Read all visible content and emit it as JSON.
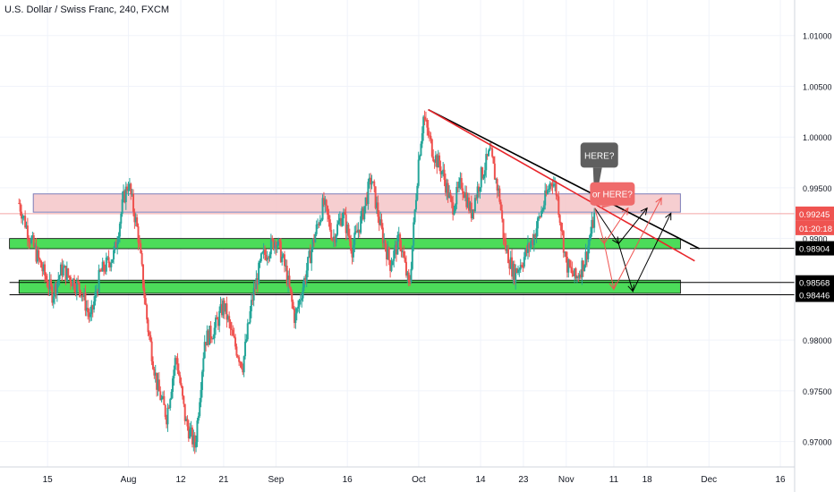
{
  "header": {
    "title": "U.S. Dollar / Swiss Franc, 240, FXCM"
  },
  "colors": {
    "up": "#26a69a",
    "down": "#ef5350",
    "pink_zone": "#f5c6c8",
    "pink_zone_border": "#7d7db8",
    "green_zone": "#4cdc5a",
    "trendline_black": "#000000",
    "trendline_red": "#e8262b",
    "current_price_line": "#f4a4a4",
    "grid": "#f0f3fa",
    "axis_text": "#131722"
  },
  "callouts": [
    {
      "id": "here",
      "text": "HERE?",
      "color": "#5f5f5f"
    },
    {
      "id": "or-here",
      "text": "or HERE?",
      "color": "#ef6b6b"
    }
  ],
  "chart_data": {
    "type": "candlestick",
    "title": "U.S. Dollar / Swiss Franc, 240, FXCM",
    "ylim": [
      0.9675,
      1.0135
    ],
    "y_ticks": [
      {
        "value": 1.01,
        "label": "1.01000"
      },
      {
        "value": 1.005,
        "label": "1.00500"
      },
      {
        "value": 1.0,
        "label": "1.00000"
      },
      {
        "value": 0.995,
        "label": "0.99500"
      },
      {
        "value": 0.99,
        "label": "0.9900"
      },
      {
        "value": 0.98,
        "label": "0.98000"
      },
      {
        "value": 0.975,
        "label": "0.97500"
      },
      {
        "value": 0.97,
        "label": "0.97000"
      }
    ],
    "x_ticks": [
      {
        "date": "2019-07-15",
        "label": "15"
      },
      {
        "date": "2019-08-01",
        "label": "Aug"
      },
      {
        "date": "2019-08-12",
        "label": "12"
      },
      {
        "date": "2019-08-21",
        "label": "21"
      },
      {
        "date": "2019-09-01",
        "label": "Sep"
      },
      {
        "date": "2019-09-16",
        "label": "16"
      },
      {
        "date": "2019-10-01",
        "label": "Oct"
      },
      {
        "date": "2019-10-14",
        "label": "14"
      },
      {
        "date": "2019-10-23",
        "label": "23"
      },
      {
        "date": "2019-11-01",
        "label": "Nov"
      },
      {
        "date": "2019-11-11",
        "label": "11"
      },
      {
        "date": "2019-11-18",
        "label": "18"
      },
      {
        "date": "2019-12-01",
        "label": "Dec"
      },
      {
        "date": "2019-12-16",
        "label": "16"
      }
    ],
    "price_path": [
      [
        "2019-07-09",
        0.9935
      ],
      [
        "2019-07-11",
        0.9905
      ],
      [
        "2019-07-13",
        0.988
      ],
      [
        "2019-07-16",
        0.9845
      ],
      [
        "2019-07-18",
        0.987
      ],
      [
        "2019-07-20",
        0.986
      ],
      [
        "2019-07-22",
        0.985
      ],
      [
        "2019-07-24",
        0.982
      ],
      [
        "2019-07-26",
        0.9865
      ],
      [
        "2019-07-29",
        0.9885
      ],
      [
        "2019-07-31",
        0.994
      ],
      [
        "2019-08-01",
        0.9955
      ],
      [
        "2019-08-03",
        0.9905
      ],
      [
        "2019-08-05",
        0.9815
      ],
      [
        "2019-08-07",
        0.9755
      ],
      [
        "2019-08-09",
        0.9725
      ],
      [
        "2019-08-11",
        0.9785
      ],
      [
        "2019-08-13",
        0.972
      ],
      [
        "2019-08-15",
        0.9695
      ],
      [
        "2019-08-17",
        0.98
      ],
      [
        "2019-08-19",
        0.981
      ],
      [
        "2019-08-21",
        0.9835
      ],
      [
        "2019-08-23",
        0.98
      ],
      [
        "2019-08-25",
        0.9775
      ],
      [
        "2019-08-27",
        0.984
      ],
      [
        "2019-08-29",
        0.988
      ],
      [
        "2019-09-01",
        0.99
      ],
      [
        "2019-09-03",
        0.987
      ],
      [
        "2019-09-05",
        0.982
      ],
      [
        "2019-09-07",
        0.986
      ],
      [
        "2019-09-09",
        0.99
      ],
      [
        "2019-09-11",
        0.9935
      ],
      [
        "2019-09-13",
        0.99
      ],
      [
        "2019-09-15",
        0.9925
      ],
      [
        "2019-09-17",
        0.989
      ],
      [
        "2019-09-19",
        0.992
      ],
      [
        "2019-09-21",
        0.996
      ],
      [
        "2019-09-23",
        0.991
      ],
      [
        "2019-09-25",
        0.9875
      ],
      [
        "2019-09-27",
        0.99
      ],
      [
        "2019-09-29",
        0.985
      ],
      [
        "2019-10-01",
        0.998
      ],
      [
        "2019-10-02",
        1.002
      ],
      [
        "2019-10-04",
        0.9985
      ],
      [
        "2019-10-06",
        0.9965
      ],
      [
        "2019-10-08",
        0.993
      ],
      [
        "2019-10-10",
        0.9955
      ],
      [
        "2019-10-12",
        0.9925
      ],
      [
        "2019-10-14",
        0.996
      ],
      [
        "2019-10-16",
        0.9985
      ],
      [
        "2019-10-18",
        0.994
      ],
      [
        "2019-10-19",
        0.9895
      ],
      [
        "2019-10-21",
        0.9865
      ],
      [
        "2019-10-23",
        0.988
      ],
      [
        "2019-10-25",
        0.99
      ],
      [
        "2019-10-27",
        0.993
      ],
      [
        "2019-10-29",
        0.996
      ],
      [
        "2019-10-30",
        0.9945
      ],
      [
        "2019-11-01",
        0.9875
      ],
      [
        "2019-11-03",
        0.986
      ],
      [
        "2019-11-05",
        0.988
      ],
      [
        "2019-11-07",
        0.9924
      ]
    ],
    "zones": [
      {
        "name": "pink-resistance-zone",
        "y_top": 0.9944,
        "y_bottom": 0.9926,
        "x_start": "2019-07-12",
        "x_end": "2019-11-25"
      },
      {
        "name": "green-support-zone-upper",
        "y_top": 0.99,
        "y_bottom": 0.989,
        "x_start": "2019-07-07",
        "x_end": "2019-11-25"
      },
      {
        "name": "green-support-zone-lower",
        "y_top": 0.9859,
        "y_bottom": 0.9846,
        "x_start": "2019-07-09",
        "x_end": "2019-11-25"
      }
    ],
    "trendlines": [
      {
        "name": "black-trendline",
        "x1": "2019-10-03",
        "y1": 1.0027,
        "x2": "2019-11-29",
        "y2": 0.989,
        "color": "#000000"
      },
      {
        "name": "red-trendline",
        "x1": "2019-10-03",
        "y1": 1.0027,
        "x2": "2019-11-28",
        "y2": 0.9878,
        "color": "#e8262b"
      }
    ],
    "horizontal_lines": [
      {
        "name": "level-0.98904",
        "value": 0.98904,
        "x_start": "2019-11-27"
      },
      {
        "name": "level-0.98568",
        "value": 0.98568,
        "x_start": "2019-07-07"
      },
      {
        "name": "level-0.98446",
        "value": 0.98446,
        "x_start": "2019-07-07"
      }
    ],
    "price_labels": [
      {
        "value": 0.99245,
        "label": "0.99245",
        "bg": "#ef5350",
        "fg": "#ffffff",
        "kind": "current"
      },
      {
        "value": 0.99185,
        "label": "01:20:18",
        "bg": "#ef5350",
        "fg": "#ffffff",
        "kind": "countdown"
      },
      {
        "value": 0.98904,
        "label": "0.98904",
        "bg": "#000000",
        "fg": "#ffffff",
        "kind": "level"
      },
      {
        "value": 0.98568,
        "label": "0.98568",
        "bg": "#000000",
        "fg": "#ffffff",
        "kind": "level"
      },
      {
        "value": 0.98446,
        "label": "0.98446",
        "bg": "#000000",
        "fg": "#ffffff",
        "kind": "level"
      }
    ],
    "current_price": 0.99245,
    "scenario_paths": [
      {
        "color": "#000000",
        "points": [
          [
            "2019-11-07",
            0.993
          ],
          [
            "2019-11-12",
            0.9895
          ],
          [
            "2019-11-18",
            0.993
          ]
        ]
      },
      {
        "color": "#000000",
        "points": [
          [
            "2019-11-12",
            0.9895
          ],
          [
            "2019-11-15",
            0.9848
          ],
          [
            "2019-11-23",
            0.9925
          ]
        ]
      },
      {
        "color": "#ef5350",
        "points": [
          [
            "2019-11-07",
            0.993
          ],
          [
            "2019-11-09",
            0.9895
          ],
          [
            "2019-11-14",
            0.993
          ]
        ]
      },
      {
        "color": "#ef5350",
        "points": [
          [
            "2019-11-09",
            0.9895
          ],
          [
            "2019-11-11",
            0.985
          ],
          [
            "2019-11-21",
            0.994
          ]
        ]
      }
    ]
  }
}
